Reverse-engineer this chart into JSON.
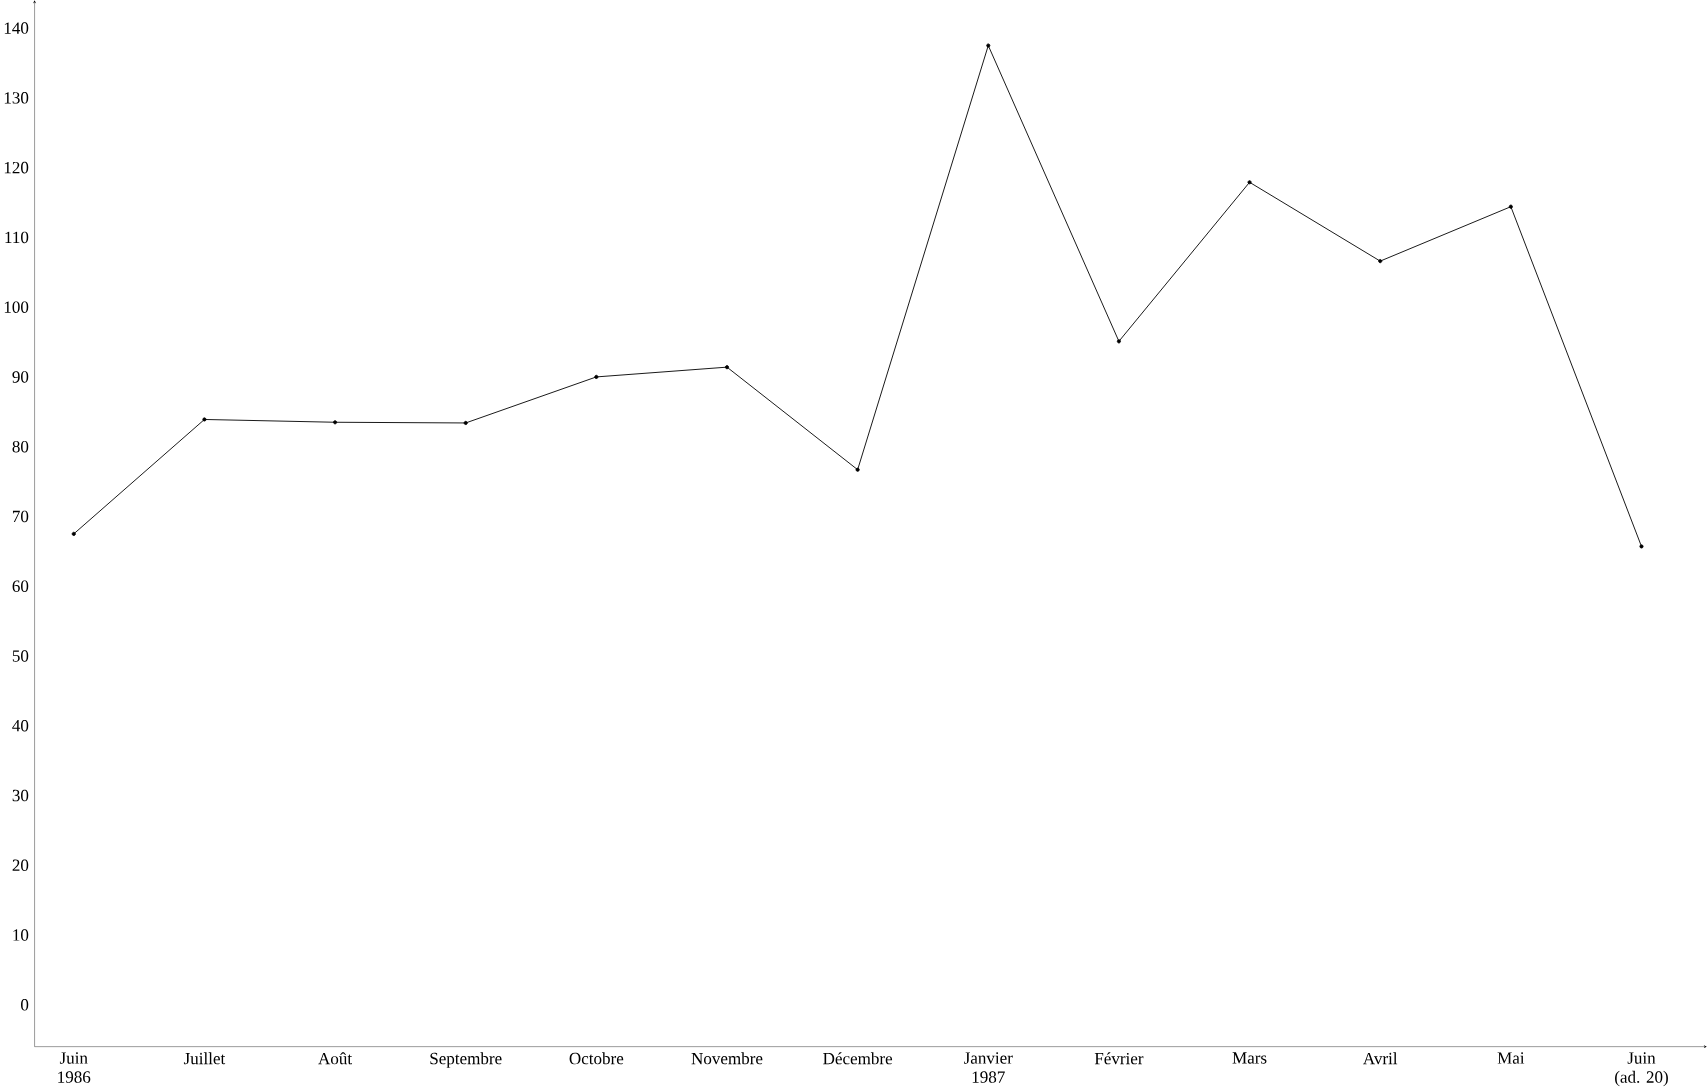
{
  "chart_data": {
    "type": "line",
    "categories": [
      "Juin\n1986",
      "Juillet",
      "Août",
      "Septembre",
      "Octobre",
      "Novembre",
      "Décembre",
      "Janvier\n1987",
      "Février",
      "Mars",
      "Avril",
      "Mai",
      "Juin\n(ad. 20)"
    ],
    "values": [
      67.5,
      83.9,
      83.5,
      83.4,
      90.0,
      91.4,
      76.7,
      137.5,
      95.1,
      117.9,
      106.6,
      114.4,
      65.7
    ],
    "color": "#000000",
    "marker": "circle",
    "grid": false,
    "ylim": [
      -6,
      144
    ],
    "yticks": [
      0,
      10,
      20,
      30,
      40,
      50,
      60,
      70,
      80,
      90,
      100,
      110,
      120,
      130,
      140
    ]
  }
}
